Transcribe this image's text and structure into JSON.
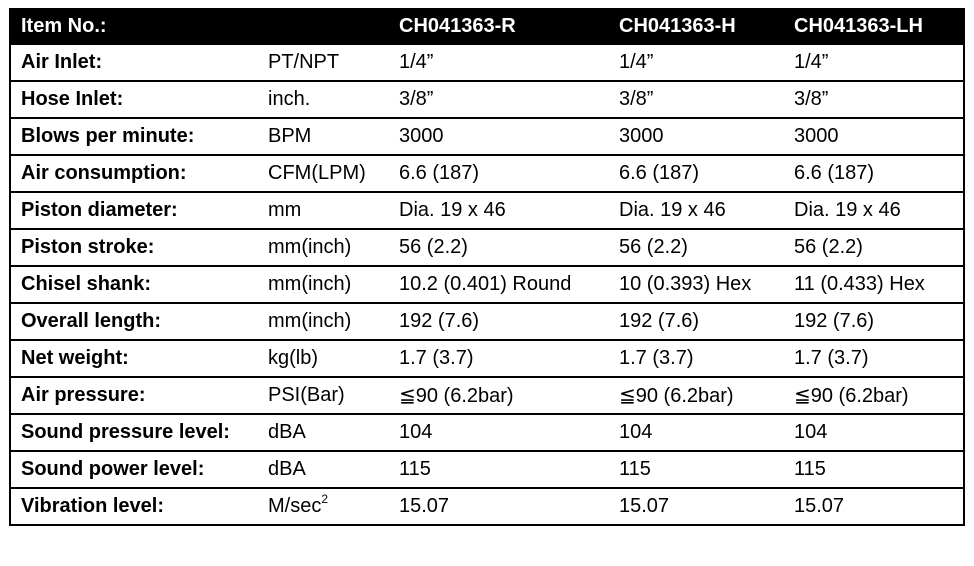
{
  "header": {
    "item_label": "Item No.:",
    "unit": "",
    "models": [
      "CH041363-R",
      "CH041363-H",
      "CH041363-LH"
    ]
  },
  "rows": [
    {
      "label": "Air Inlet:",
      "unit": "PT/NPT",
      "values": [
        "1/4”",
        "1/4”",
        "1/4”"
      ]
    },
    {
      "label": "Hose Inlet:",
      "unit": "inch.",
      "values": [
        "3/8”",
        "3/8”",
        "3/8”"
      ]
    },
    {
      "label": "Blows per minute:",
      "unit": "BPM",
      "values": [
        "3000",
        "3000",
        "3000"
      ]
    },
    {
      "label": "Air consumption:",
      "unit": "CFM(LPM)",
      "values": [
        "6.6 (187)",
        "6.6 (187)",
        "6.6 (187)"
      ]
    },
    {
      "label": "Piston diameter:",
      "unit": "mm",
      "values": [
        "Dia. 19 x 46",
        "Dia. 19 x 46",
        "Dia. 19 x 46"
      ]
    },
    {
      "label": "Piston stroke:",
      "unit": "mm(inch)",
      "values": [
        "56 (2.2)",
        "56 (2.2)",
        "56 (2.2)"
      ]
    },
    {
      "label": "Chisel shank:",
      "unit": "mm(inch)",
      "values": [
        "10.2 (0.401) Round",
        "10 (0.393) Hex",
        "11 (0.433) Hex"
      ]
    },
    {
      "label": "Overall length:",
      "unit": "mm(inch)",
      "values": [
        "192 (7.6)",
        "192 (7.6)",
        "192 (7.6)"
      ]
    },
    {
      "label": "Net weight:",
      "unit": "kg(lb)",
      "values": [
        "1.7 (3.7)",
        "1.7 (3.7)",
        "1.7 (3.7)"
      ]
    },
    {
      "label": "Air pressure:",
      "unit": "PSI(Bar)",
      "values": [
        "≦90 (6.2bar)",
        "≦90 (6.2bar)",
        "≦90 (6.2bar)"
      ]
    },
    {
      "label": "Sound pressure level:",
      "unit": "dBA",
      "values": [
        "104",
        "104",
        "104"
      ]
    },
    {
      "label": "Sound power level:",
      "unit": "dBA",
      "values": [
        "115",
        "115",
        "115"
      ]
    },
    {
      "label": "Vibration level:",
      "unit": "M/sec",
      "unit_sup": "2",
      "values": [
        "15.07",
        "15.07",
        "15.07"
      ]
    }
  ]
}
